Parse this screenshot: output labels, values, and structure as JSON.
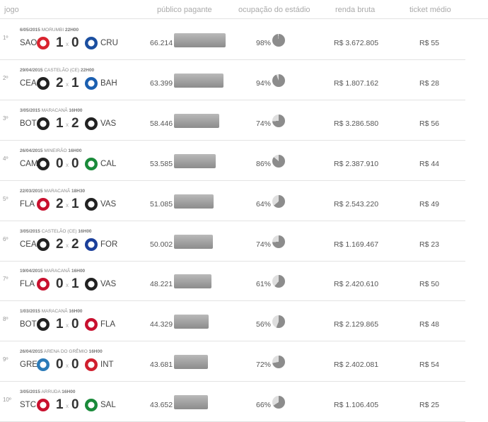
{
  "header": {
    "jogo": "jogo",
    "publico": "público pagante",
    "ocupacao": "ocupação do estádio",
    "renda": "renda bruta",
    "ticket": "ticket médio"
  },
  "colors": {
    "bar": "#9a9a9a",
    "pie_fill": "#8c8c8c",
    "pie_empty": "#dedede"
  },
  "max_publico": 66214,
  "rows": [
    {
      "rank": "1º",
      "date": "6/05/2015",
      "venue": "MORUMBI",
      "time": "22H00",
      "home": "SAO",
      "home_score": "1",
      "away_score": "0",
      "away": "CRU",
      "home_badge_color": "#d9232e",
      "away_badge_color": "#1b4fa0",
      "publico": "66.214",
      "publico_value": 66214,
      "ocupacao": "98%",
      "ocupacao_value": 98,
      "renda": "R$ 3.672.805",
      "ticket": "R$ 55"
    },
    {
      "rank": "2º",
      "date": "29/04/2015",
      "venue": "CASTELÃO (CE)",
      "time": "22H00",
      "home": "CEA",
      "home_score": "2",
      "away_score": "1",
      "away": "BAH",
      "home_badge_color": "#222222",
      "away_badge_color": "#1b5fb0",
      "publico": "63.399",
      "publico_value": 63399,
      "ocupacao": "94%",
      "ocupacao_value": 94,
      "renda": "R$ 1.807.162",
      "ticket": "R$ 28"
    },
    {
      "rank": "3º",
      "date": "3/05/2015",
      "venue": "MARACANÃ",
      "time": "16H00",
      "home": "BOT",
      "home_score": "1",
      "away_score": "2",
      "away": "VAS",
      "home_badge_color": "#222222",
      "away_badge_color": "#222222",
      "publico": "58.446",
      "publico_value": 58446,
      "ocupacao": "74%",
      "ocupacao_value": 74,
      "renda": "R$ 3.286.580",
      "ticket": "R$ 56"
    },
    {
      "rank": "4º",
      "date": "26/04/2015",
      "venue": "MINEIRÃO",
      "time": "16H00",
      "home": "CAM",
      "home_score": "0",
      "away_score": "0",
      "away": "CAL",
      "home_badge_color": "#222222",
      "away_badge_color": "#1a8a3a",
      "publico": "53.585",
      "publico_value": 53585,
      "ocupacao": "86%",
      "ocupacao_value": 86,
      "renda": "R$ 2.387.910",
      "ticket": "R$ 44"
    },
    {
      "rank": "5º",
      "date": "22/03/2015",
      "venue": "MARACANÃ",
      "time": "18H30",
      "home": "FLA",
      "home_score": "2",
      "away_score": "1",
      "away": "VAS",
      "home_badge_color": "#c8102e",
      "away_badge_color": "#222222",
      "publico": "51.085",
      "publico_value": 51085,
      "ocupacao": "64%",
      "ocupacao_value": 64,
      "renda": "R$ 2.543.220",
      "ticket": "R$ 49"
    },
    {
      "rank": "6º",
      "date": "3/05/2015",
      "venue": "CASTELÃO (CE)",
      "time": "16H00",
      "home": "CEA",
      "home_score": "2",
      "away_score": "2",
      "away": "FOR",
      "home_badge_color": "#222222",
      "away_badge_color": "#1b3f9a",
      "publico": "50.002",
      "publico_value": 50002,
      "ocupacao": "74%",
      "ocupacao_value": 74,
      "renda": "R$ 1.169.467",
      "ticket": "R$ 23"
    },
    {
      "rank": "7º",
      "date": "19/04/2015",
      "venue": "MARACANÃ",
      "time": "16H00",
      "home": "FLA",
      "home_score": "0",
      "away_score": "1",
      "away": "VAS",
      "home_badge_color": "#c8102e",
      "away_badge_color": "#222222",
      "publico": "48.221",
      "publico_value": 48221,
      "ocupacao": "61%",
      "ocupacao_value": 61,
      "renda": "R$ 2.420.610",
      "ticket": "R$ 50"
    },
    {
      "rank": "8º",
      "date": "1/03/2015",
      "venue": "MARACANÃ",
      "time": "16H00",
      "home": "BOT",
      "home_score": "1",
      "away_score": "0",
      "away": "FLA",
      "home_badge_color": "#222222",
      "away_badge_color": "#c8102e",
      "publico": "44.329",
      "publico_value": 44329,
      "ocupacao": "56%",
      "ocupacao_value": 56,
      "renda": "R$ 2.129.865",
      "ticket": "R$ 48"
    },
    {
      "rank": "9º",
      "date": "26/04/2015",
      "venue": "ARENA DO GRÊMIO",
      "time": "16H00",
      "home": "GRE",
      "home_score": "0",
      "away_score": "0",
      "away": "INT",
      "home_badge_color": "#2a7ab8",
      "away_badge_color": "#d01f2e",
      "publico": "43.681",
      "publico_value": 43681,
      "ocupacao": "72%",
      "ocupacao_value": 72,
      "renda": "R$ 2.402.081",
      "ticket": "R$ 54"
    },
    {
      "rank": "10º",
      "date": "3/05/2015",
      "venue": "ARRUDA",
      "time": "16H00",
      "home": "STC",
      "home_score": "1",
      "away_score": "0",
      "away": "SAL",
      "home_badge_color": "#c8102e",
      "away_badge_color": "#1a8a3a",
      "publico": "43.652",
      "publico_value": 43652,
      "ocupacao": "66%",
      "ocupacao_value": 66,
      "renda": "R$ 1.106.405",
      "ticket": "R$ 25"
    }
  ]
}
